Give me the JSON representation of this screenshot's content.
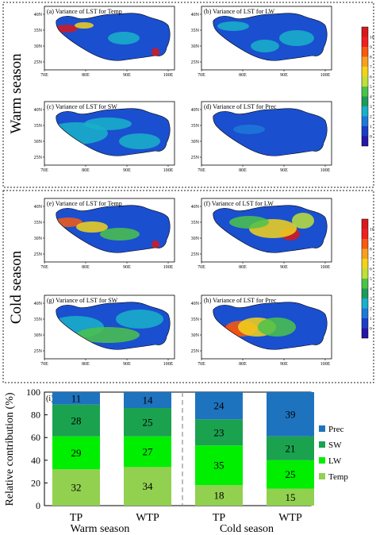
{
  "season_labels": {
    "warm": "Warm season",
    "cold": "Cold season"
  },
  "colorbar": {
    "ticks": [
      "10",
      "9",
      "8",
      "7",
      "6",
      "5",
      "4",
      "3",
      "2",
      "1",
      "0"
    ],
    "colors": [
      "#d7191c",
      "#f02020",
      "#f75a10",
      "#f7a020",
      "#f3d21a",
      "#bde03a",
      "#4cc24a",
      "#1f9a5a",
      "#1ab0c9",
      "#1e78d8",
      "#1a3cc8",
      "#2416a8"
    ]
  },
  "maps": {
    "x_ticks": [
      "70E",
      "80E",
      "90E",
      "100E"
    ],
    "y_ticks": [
      "40N",
      "35N",
      "30N",
      "25N"
    ],
    "panels": [
      {
        "title": "(a) Variance of LST for Temp",
        "scheme": "a"
      },
      {
        "title": "(b) Variance of LST for LW",
        "scheme": "b"
      },
      {
        "title": "(c) Variance of LST for SW",
        "scheme": "c"
      },
      {
        "title": "(d) Variance of LST for Prec",
        "scheme": "d"
      },
      {
        "title": "(e) Variance of LST for Temp",
        "scheme": "e"
      },
      {
        "title": "(f) Variance of LST for LW",
        "scheme": "f"
      },
      {
        "title": "(g) Variance of LST for SW",
        "scheme": "g"
      },
      {
        "title": "(h) Variance of LST for Prec",
        "scheme": "h"
      }
    ]
  },
  "chart_data": {
    "type": "bar",
    "stacked": true,
    "panel_label": "(i)",
    "ylabel": "Relative contribution (%)",
    "ylim": [
      0,
      100
    ],
    "y_ticks": [
      0,
      20,
      40,
      60,
      80,
      100
    ],
    "categories": [
      "TP",
      "WTP",
      "TP",
      "WTP"
    ],
    "groups": [
      {
        "label": "Warm season",
        "categories": [
          "TP",
          "WTP"
        ]
      },
      {
        "label": "Cold season",
        "categories": [
          "TP",
          "WTP"
        ]
      }
    ],
    "series": [
      {
        "name": "Temp",
        "color": "#92d050",
        "values": [
          32,
          34,
          18,
          15
        ]
      },
      {
        "name": "LW",
        "color": "#00ee00",
        "values": [
          29,
          27,
          35,
          25
        ]
      },
      {
        "name": "SW",
        "color": "#1aa24f",
        "values": [
          28,
          25,
          23,
          21
        ]
      },
      {
        "name": "Prec",
        "color": "#1e73be",
        "values": [
          11,
          14,
          24,
          39
        ]
      }
    ],
    "legend_position": "right",
    "legend_order": [
      "Prec",
      "SW",
      "LW",
      "Temp"
    ]
  }
}
